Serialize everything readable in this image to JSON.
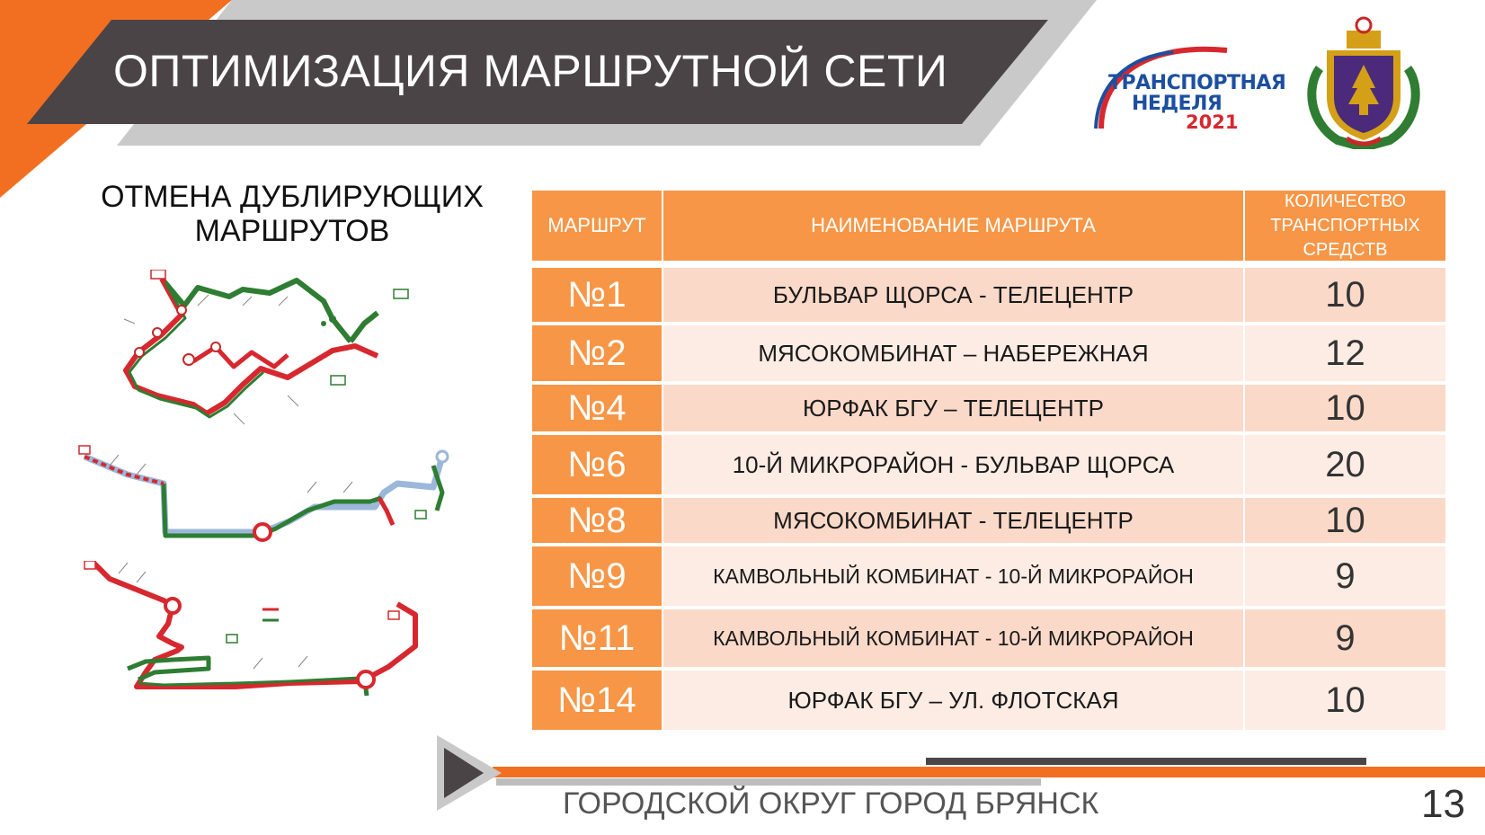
{
  "header": {
    "title": "ОПТИМИЗАЦИЯ МАРШРУТНОЙ СЕТИ",
    "colors": {
      "orange": "#f26f21",
      "dark": "#4a4446",
      "gray": "#c8c8c8"
    }
  },
  "event_logo": {
    "line1": "ТРАНСПОРТНАЯ",
    "line2": "НЕДЕЛЯ",
    "year": "2021"
  },
  "coat_of_arms_icon": "bryansk-coat-of-arms-icon",
  "subtitle": {
    "line1": "ОТМЕНА ДУБЛИРУЮЩИХ",
    "line2": "МАРШРУТОВ"
  },
  "maps": [
    {
      "icon": "route-scheme-map-icon"
    },
    {
      "icon": "route-scheme-map-icon"
    },
    {
      "icon": "route-scheme-map-icon"
    }
  ],
  "table": {
    "headers": {
      "route": "МАРШРУТ",
      "name": "НАИМЕНОВАНИЕ МАРШРУТА",
      "count_line1": "КОЛИЧЕСТВО",
      "count_line2": "ТРАНСПОРТНЫХ",
      "count_line3": "СРЕДСТВ"
    },
    "rows": [
      {
        "route": "№1",
        "name": "БУЛЬВАР ЩОРСА  - ТЕЛЕЦЕНТР",
        "count": "10"
      },
      {
        "route": "№2",
        "name": "МЯСОКОМБИНАТ – НАБЕРЕЖНАЯ",
        "count": "12"
      },
      {
        "route": "№4",
        "name": "ЮРФАК БГУ – ТЕЛЕЦЕНТР",
        "count": "10"
      },
      {
        "route": "№6",
        "name": "10-Й МИКРОРАЙОН - БУЛЬВАР ЩОРСА",
        "count": "20"
      },
      {
        "route": "№8",
        "name": "МЯСОКОМБИНАТ - ТЕЛЕЦЕНТР",
        "count": "10"
      },
      {
        "route": "№9",
        "name": "КАМВОЛЬНЫЙ КОМБИНАТ - 10-Й МИКРОРАЙОН",
        "count": "9"
      },
      {
        "route": "№11",
        "name": "КАМВОЛЬНЫЙ КОМБИНАТ - 10-Й МИКРОРАЙОН",
        "count": "9"
      },
      {
        "route": "№14",
        "name": "ЮРФАК БГУ – УЛ. ФЛОТСКАЯ",
        "count": "10"
      }
    ]
  },
  "footer": {
    "text": "ГОРОДСКОЙ ОКРУГ ГОРОД БРЯНСК",
    "page_number": "13"
  }
}
